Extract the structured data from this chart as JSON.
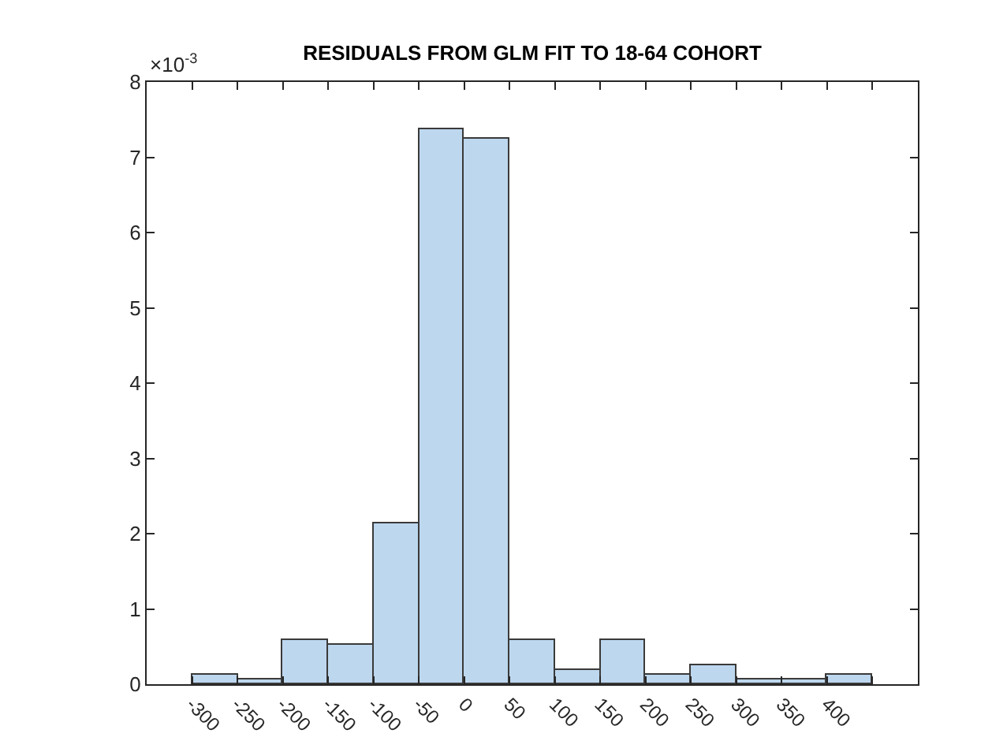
{
  "chart_data": {
    "type": "histogram",
    "title": "RESIDUALS FROM GLM FIT TO 18-64 COHORT",
    "bins": [
      -300,
      -250,
      -200,
      -150,
      -100,
      -50,
      0,
      50,
      100,
      150,
      200,
      250,
      300,
      350,
      400,
      450
    ],
    "values": [
      0.13,
      0.06,
      0.58,
      0.52,
      2.13,
      7.38,
      7.25,
      0.58,
      0.19,
      0.58,
      0.13,
      0.26,
      0.06,
      0.06,
      0.13
    ],
    "color": "#bdd7ee",
    "xlim": [
      -350,
      500
    ],
    "xticks": [
      -300,
      -250,
      -200,
      -150,
      -100,
      -50,
      0,
      50,
      100,
      150,
      200,
      250,
      300,
      350,
      400,
      {
        "value": 450,
        "label": null
      }
    ],
    "ylim": [
      0,
      8
    ],
    "yticks": [
      0,
      1,
      2,
      3,
      4,
      5,
      6,
      7,
      8
    ],
    "annotations": [
      "×10$^{-3}$"
    ]
  }
}
